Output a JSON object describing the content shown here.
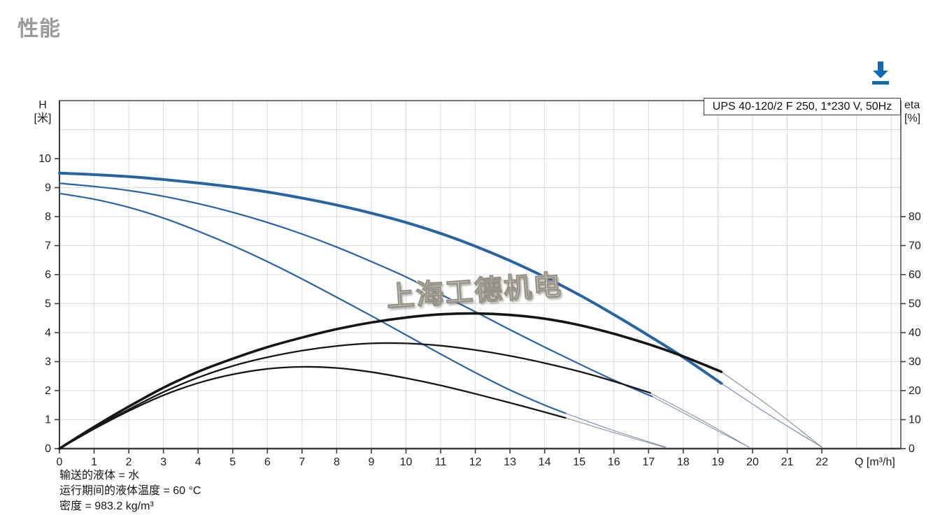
{
  "page": {
    "heading": "性能"
  },
  "toolbar": {
    "download_icon": "download-icon",
    "accent_blue": "#0d6ab5"
  },
  "watermark": {
    "text": "上海工德机电"
  },
  "footer": {
    "lines": [
      "输送的液体 = 水",
      "运行期间的液体温度 = 60 °C",
      "密度 = 983.2 kg/m³"
    ]
  },
  "chart_data": {
    "type": "line",
    "title": "UPS 40-120/2 F 250, 1*230 V, 50Hz",
    "grid": "on",
    "legend": "none",
    "x": {
      "label": "Q [m³/h]",
      "min": 0,
      "max": 24.3,
      "ticks": [
        0,
        1,
        2,
        3,
        4,
        5,
        6,
        7,
        8,
        9,
        10,
        11,
        12,
        13,
        14,
        15,
        16,
        17,
        18,
        19,
        20,
        21,
        22
      ]
    },
    "y_left": {
      "label_line1": "H",
      "label_line2": "[米]",
      "min": 0,
      "max": 12,
      "ticks": [
        0,
        1,
        2,
        3,
        4,
        5,
        6,
        7,
        8,
        9,
        10
      ]
    },
    "y_right": {
      "label_line1": "eta",
      "label_line2": "[%]",
      "min": 0,
      "max": 120,
      "ticks": [
        0,
        10,
        20,
        30,
        40,
        50,
        60,
        70,
        80
      ]
    },
    "colors": {
      "blue": "#2764a4",
      "black": "#161616",
      "ext_gray": "#8d9298",
      "ext_blue": "#7b8fb4",
      "grid": "#dadada",
      "frame": "#3a3a3a",
      "text": "#1d1d1d"
    },
    "series": [
      {
        "name": "speed3-head-extension",
        "axis": "left",
        "color": "ext_blue",
        "width": 1.2,
        "points": [
          [
            19.1,
            2.25
          ],
          [
            20.5,
            1.15
          ],
          [
            22,
            0.05
          ]
        ]
      },
      {
        "name": "speed3-eta-extension",
        "axis": "right",
        "color": "ext_gray",
        "width": 1.2,
        "points": [
          [
            19.1,
            26.5
          ],
          [
            20.5,
            14.5
          ],
          [
            22,
            0.5
          ]
        ]
      },
      {
        "name": "speed2-head-extension",
        "axis": "left",
        "color": "ext_blue",
        "width": 1.1,
        "points": [
          [
            17.1,
            1.8
          ],
          [
            18.5,
            0.92
          ],
          [
            19.9,
            0.05
          ]
        ]
      },
      {
        "name": "speed2-eta-extension",
        "axis": "right",
        "color": "ext_gray",
        "width": 1.1,
        "points": [
          [
            17.05,
            19.2
          ],
          [
            18.5,
            10
          ],
          [
            19.9,
            0.5
          ]
        ]
      },
      {
        "name": "speed1-head-extension",
        "axis": "left",
        "color": "ext_blue",
        "width": 1.1,
        "points": [
          [
            14.6,
            1.22
          ],
          [
            16,
            0.62
          ],
          [
            17.5,
            0.05
          ]
        ]
      },
      {
        "name": "speed1-eta-extension",
        "axis": "right",
        "color": "ext_gray",
        "width": 1.1,
        "points": [
          [
            14.6,
            10.6
          ],
          [
            16,
            5.5
          ],
          [
            17.5,
            0.3
          ]
        ]
      },
      {
        "name": "speed1-head",
        "axis": "left",
        "color": "blue",
        "width": 2.2,
        "points": [
          [
            0,
            8.8
          ],
          [
            1,
            8.6
          ],
          [
            2,
            8.32
          ],
          [
            3,
            7.95
          ],
          [
            4,
            7.5
          ],
          [
            5,
            7.0
          ],
          [
            6,
            6.45
          ],
          [
            7,
            5.85
          ],
          [
            8,
            5.22
          ],
          [
            9,
            4.58
          ],
          [
            10,
            3.92
          ],
          [
            11,
            3.26
          ],
          [
            12,
            2.62
          ],
          [
            13,
            2.02
          ],
          [
            14,
            1.5
          ],
          [
            14.6,
            1.22
          ]
        ]
      },
      {
        "name": "speed2-head",
        "axis": "left",
        "color": "blue",
        "width": 2.2,
        "points": [
          [
            0,
            9.15
          ],
          [
            1,
            9.04
          ],
          [
            2,
            8.9
          ],
          [
            3,
            8.7
          ],
          [
            4,
            8.45
          ],
          [
            5,
            8.15
          ],
          [
            6,
            7.8
          ],
          [
            7,
            7.4
          ],
          [
            8,
            6.95
          ],
          [
            9,
            6.45
          ],
          [
            10,
            5.92
          ],
          [
            11,
            5.32
          ],
          [
            12,
            4.72
          ],
          [
            13,
            4.1
          ],
          [
            14,
            3.5
          ],
          [
            15,
            2.92
          ],
          [
            16,
            2.36
          ],
          [
            17.1,
            1.8
          ]
        ]
      },
      {
        "name": "speed3-head",
        "axis": "left",
        "color": "blue",
        "width": 4,
        "points": [
          [
            0,
            9.5
          ],
          [
            1,
            9.45
          ],
          [
            2,
            9.38
          ],
          [
            3,
            9.28
          ],
          [
            4,
            9.16
          ],
          [
            5,
            9.02
          ],
          [
            6,
            8.85
          ],
          [
            7,
            8.64
          ],
          [
            8,
            8.4
          ],
          [
            9,
            8.12
          ],
          [
            10,
            7.8
          ],
          [
            11,
            7.42
          ],
          [
            12,
            6.98
          ],
          [
            13,
            6.48
          ],
          [
            14,
            5.92
          ],
          [
            15,
            5.3
          ],
          [
            16,
            4.62
          ],
          [
            17,
            3.9
          ],
          [
            18,
            3.15
          ],
          [
            19.1,
            2.25
          ]
        ]
      },
      {
        "name": "speed1-eta",
        "axis": "right",
        "color": "black",
        "width": 2.3,
        "points": [
          [
            0,
            0
          ],
          [
            1,
            6.8
          ],
          [
            2,
            13
          ],
          [
            3,
            18.4
          ],
          [
            4,
            22.6
          ],
          [
            5,
            25.6
          ],
          [
            6,
            27.5
          ],
          [
            7,
            28.2
          ],
          [
            8,
            27.8
          ],
          [
            9,
            26.4
          ],
          [
            10,
            24.3
          ],
          [
            11,
            21.8
          ],
          [
            12,
            18.9
          ],
          [
            13,
            15.8
          ],
          [
            14,
            12.6
          ],
          [
            14.6,
            10.6
          ]
        ]
      },
      {
        "name": "speed2-eta",
        "axis": "right",
        "color": "black",
        "width": 2.3,
        "points": [
          [
            0,
            0
          ],
          [
            1,
            7
          ],
          [
            2,
            13.5
          ],
          [
            3,
            19.5
          ],
          [
            4,
            24.5
          ],
          [
            5,
            28.5
          ],
          [
            6,
            31.5
          ],
          [
            7,
            33.8
          ],
          [
            8,
            35.4
          ],
          [
            9,
            36.3
          ],
          [
            10,
            36.3
          ],
          [
            11,
            35.5
          ],
          [
            12,
            34
          ],
          [
            13,
            32
          ],
          [
            14,
            29.5
          ],
          [
            15,
            26.6
          ],
          [
            16,
            23.2
          ],
          [
            17.05,
            19.2
          ]
        ]
      },
      {
        "name": "speed3-eta",
        "axis": "right",
        "color": "black",
        "width": 3.6,
        "points": [
          [
            0,
            0
          ],
          [
            1,
            7.5
          ],
          [
            2,
            14.5
          ],
          [
            3,
            21
          ],
          [
            4,
            26.5
          ],
          [
            5,
            31
          ],
          [
            6,
            35
          ],
          [
            7,
            38.3
          ],
          [
            8,
            41.2
          ],
          [
            9,
            43.5
          ],
          [
            10,
            45.2
          ],
          [
            11,
            46.3
          ],
          [
            12,
            46.6
          ],
          [
            13,
            46.1
          ],
          [
            14,
            44.8
          ],
          [
            15,
            42.6
          ],
          [
            16,
            39.6
          ],
          [
            17,
            36
          ],
          [
            18,
            31.8
          ],
          [
            19.1,
            26.5
          ]
        ]
      }
    ]
  }
}
